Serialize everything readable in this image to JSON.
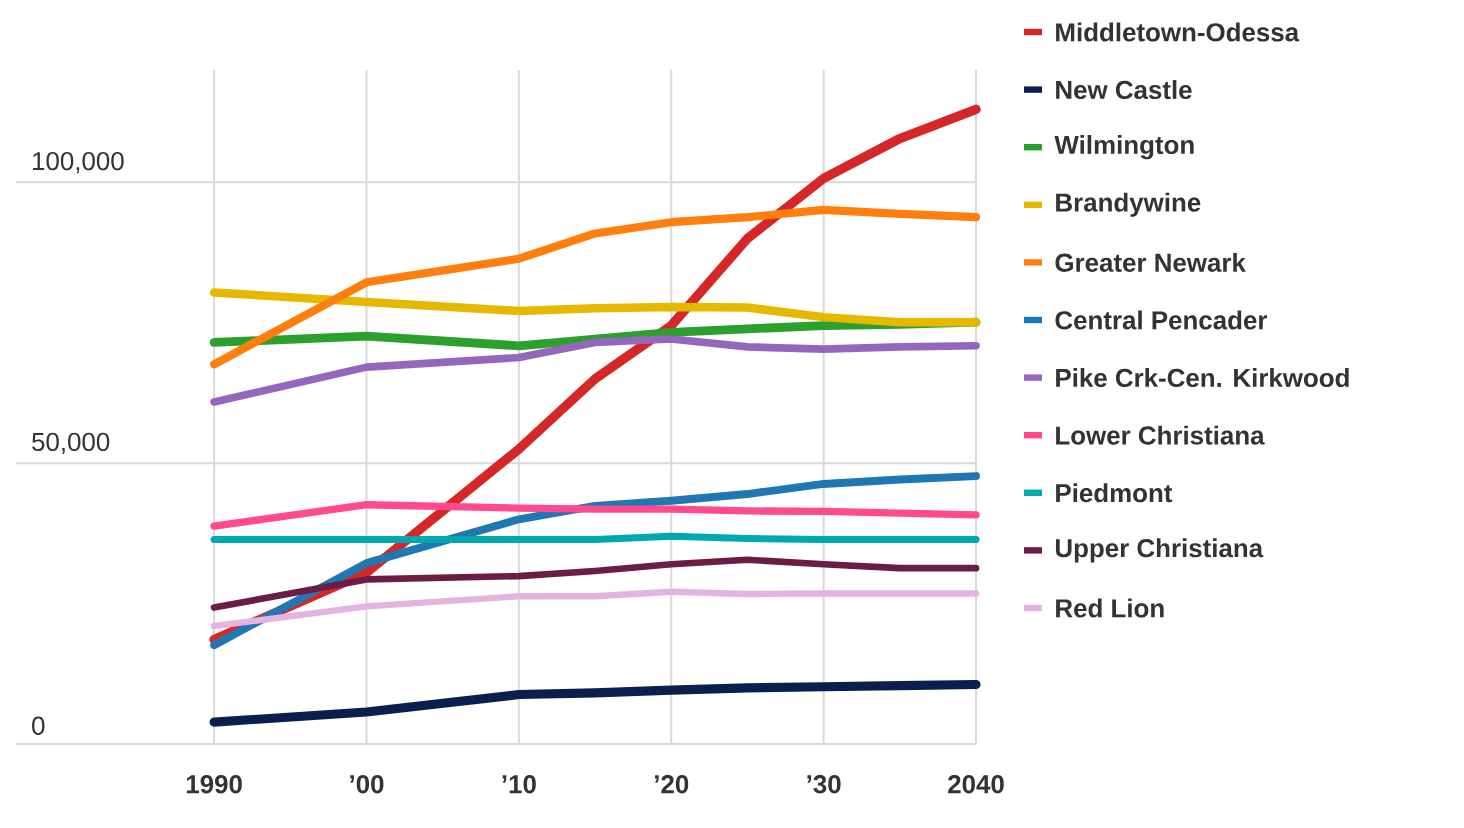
{
  "chart_data": {
    "type": "line",
    "xlim": [
      1977,
      2040
    ],
    "ylim": [
      0,
      120000
    ],
    "xticks": [
      1990,
      {
        "value": 2000,
        "label": "’00"
      },
      {
        "value": 2010,
        "label": "’10"
      },
      {
        "value": 2020,
        "label": "’20"
      },
      {
        "value": 2030,
        "label": "’30"
      },
      2040
    ],
    "yticks": [
      0,
      {
        "value": 50000,
        "label": "50,000"
      },
      {
        "value": 100000,
        "label": "100,000"
      }
    ],
    "grid": true,
    "legend": "right",
    "marker": "none",
    "line_style": "solid",
    "x": [
      1990,
      2000,
      2010,
      2015,
      2020,
      2025,
      2030,
      2035,
      2040
    ],
    "series": [
      {
        "name": "Middletown-Odessa",
        "color": "#d62728",
        "values": [
          18600,
          30500,
          52500,
          65000,
          74500,
          90000,
          100700,
          107800,
          113000
        ]
      },
      {
        "name": "New Castle",
        "color": "#0b1f4f",
        "values": [
          3900,
          5700,
          8800,
          9100,
          9600,
          10000,
          10200,
          10400,
          10600
        ]
      },
      {
        "name": "Wilmington",
        "color": "#2ca02c",
        "values": [
          71500,
          72600,
          70900,
          72100,
          73300,
          73900,
          74500,
          74700,
          75100
        ]
      },
      {
        "name": "Brandywine",
        "color": "#e6b800",
        "values": [
          80400,
          78700,
          77100,
          77600,
          77800,
          77700,
          76000,
          75100,
          75100
        ]
      },
      {
        "name": "Greater Newark",
        "color": "#ff7f0e",
        "values": [
          67600,
          82200,
          86400,
          90900,
          92900,
          93800,
          95100,
          94400,
          93800
        ]
      },
      {
        "name": "Central Pencader",
        "color": "#1f77b4",
        "values": [
          17600,
          32200,
          40000,
          42400,
          43300,
          44500,
          46300,
          47100,
          47700
        ]
      },
      {
        "name": "Pike Crk-Cen. Kirkwood",
        "color": "#9467bd",
        "values": [
          60900,
          67100,
          68800,
          71500,
          72100,
          70700,
          70300,
          70700,
          70900
        ]
      },
      {
        "name": "Lower Christiana",
        "color": "#ff4a8d",
        "values": [
          38800,
          42600,
          42000,
          41800,
          41800,
          41500,
          41400,
          41100,
          40800
        ]
      },
      {
        "name": "Piedmont",
        "color": "#00a9b0",
        "values": [
          36400,
          36400,
          36400,
          36400,
          37000,
          36600,
          36400,
          36400,
          36400
        ]
      },
      {
        "name": "Upper Christiana",
        "color": "#6b1d47",
        "values": [
          24300,
          29300,
          29900,
          30800,
          32000,
          32800,
          32000,
          31300,
          31300
        ]
      },
      {
        "name": "Red Lion",
        "color": "#e5b3e0",
        "values": [
          21000,
          24500,
          26300,
          26300,
          27100,
          26700,
          26800,
          26800,
          26800
        ]
      }
    ]
  }
}
